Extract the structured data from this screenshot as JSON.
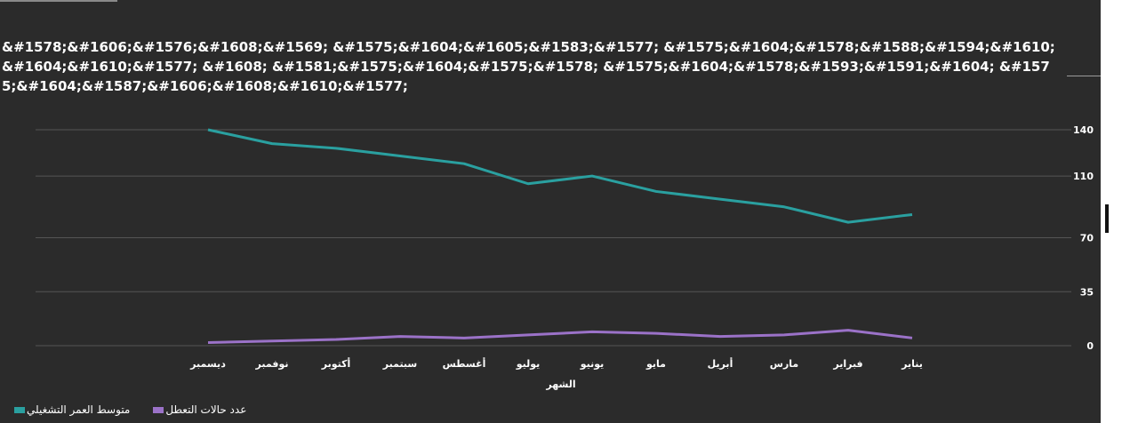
{
  "title": "&#1578;&#1606;&#1576;&#1608;&#1569; &#1575;&#1604;&#1605;&#1583;&#1577; &#1575;&#1604;&#1578;&#1588;&#1594;&#1610;&#1604;&#1610;&#1577; &#1608; &#1581;&#1575;&#1604;&#1575;&#1578; &#1575;&#1604;&#1578;&#1593;&#1591;&#1604; &#1575;&#1604;&#1587;&#1606;&#1608;&#1610;&#1577;",
  "colors": {
    "background": "#2b2b2b",
    "grid": "#555555",
    "series_teal": "#2aa0a0",
    "series_purple": "#9b72c8"
  },
  "chart_data": {
    "type": "line",
    "title": "&#1578;&#1606;&#1576;&#1608;&#1569; &#1575;&#1604;&#1605;&#1583;&#1577; &#1575;&#1604;&#1578;&#1588;&#1594;&#1610;&#1604;&#1610;&#1577; &#1608; &#1581;&#1575;&#1604;&#1575;&#1578; &#1575;&#1604;&#1578;&#1593;&#1591;&#1604; &#1575;&#1604;&#1587;&#1606;&#1608;&#1610;&#1577;",
    "xlabel": "الشهر",
    "ylabel": "",
    "x_reversed": true,
    "y_axis_side": "right",
    "categories": [
      "يناير",
      "فبراير",
      "مارس",
      "أبريل",
      "مايو",
      "يونيو",
      "يوليو",
      "أغسطس",
      "سبتمبر",
      "أكتوبر",
      "نوفمبر",
      "ديسمبر"
    ],
    "yticks": [
      0,
      35,
      70,
      110,
      140
    ],
    "ylim": [
      0,
      140
    ],
    "grid": true,
    "legend_position": "bottom-left",
    "series": [
      {
        "name": "متوسط العمر التشغيلي",
        "color": "#2aa0a0",
        "values": [
          85,
          80,
          90,
          95,
          100,
          110,
          105,
          118,
          123,
          128,
          131,
          140
        ]
      },
      {
        "name": "عدد حالات التعطل",
        "color": "#9b72c8",
        "values": [
          5,
          10,
          7,
          6,
          8,
          9,
          7,
          5,
          6,
          4,
          3,
          2
        ]
      }
    ]
  }
}
